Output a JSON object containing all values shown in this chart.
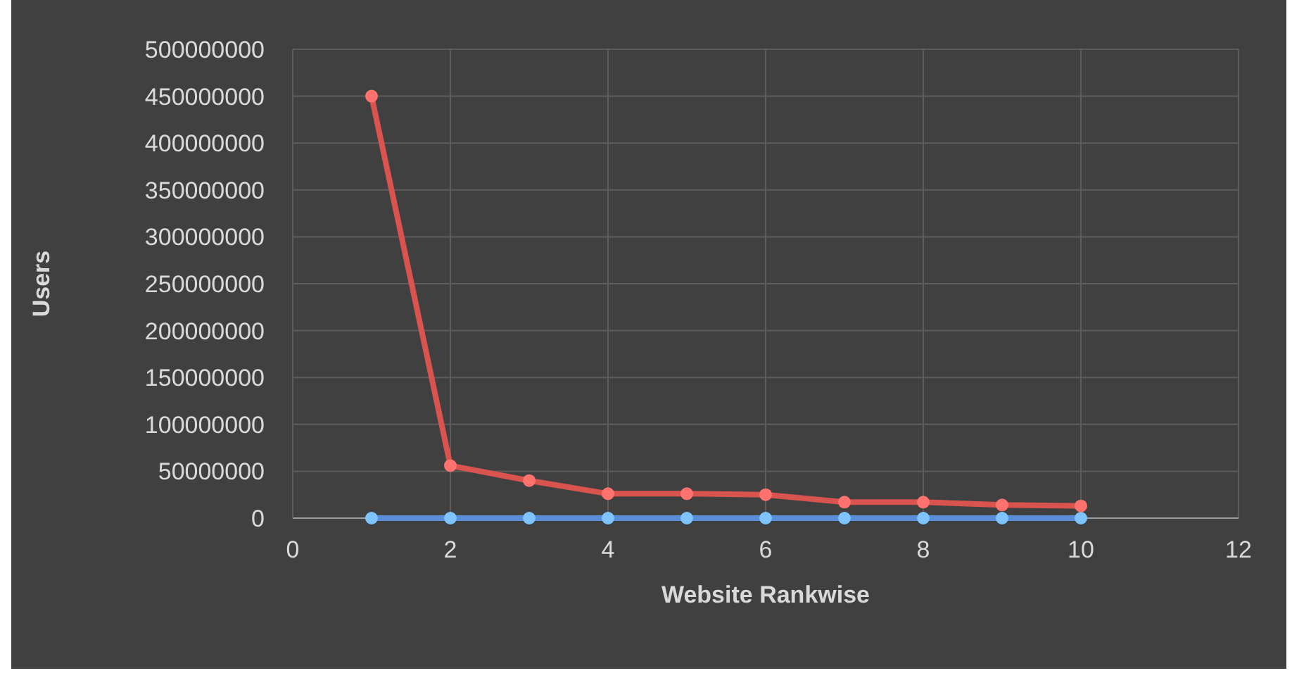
{
  "chart_data": {
    "type": "line",
    "xlabel": "Website Rankwise",
    "ylabel": "Users",
    "x": [
      1,
      2,
      3,
      4,
      5,
      6,
      7,
      8,
      9,
      10
    ],
    "series": [
      {
        "color": "#5b8ed6",
        "values": [
          0,
          0,
          0,
          0,
          0,
          0,
          0,
          0,
          0,
          0
        ]
      },
      {
        "color": "#d9534f",
        "values": [
          450000000,
          56000000,
          40000000,
          26000000,
          26000000,
          25000000,
          17000000,
          17000000,
          14000000,
          13000000
        ]
      }
    ],
    "xlim": [
      0,
      12
    ],
    "xticks": [
      0,
      2,
      4,
      6,
      8,
      10,
      12
    ],
    "ylim": [
      0,
      500000000
    ],
    "yticks": [
      0,
      50000000,
      100000000,
      150000000,
      200000000,
      250000000,
      300000000,
      350000000,
      400000000,
      450000000,
      500000000
    ],
    "grid": true,
    "marker": "circle",
    "line_style": "solid"
  }
}
